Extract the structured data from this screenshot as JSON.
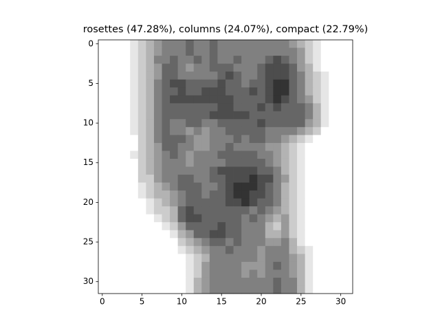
{
  "chart_data": {
    "type": "image",
    "title": "rosettes (47.28%), columns (24.07%), compact (22.79%)",
    "cmap": "gray_r",
    "clim": [
      0,
      10
    ],
    "xlim": [
      -0.5,
      31.5
    ],
    "ylim": [
      31.5,
      -0.5
    ],
    "xticks": [
      0,
      5,
      10,
      15,
      20,
      25,
      30
    ],
    "yticks": [
      0,
      5,
      10,
      15,
      20,
      25,
      30
    ],
    "values": [
      [
        0,
        0,
        0,
        0,
        1,
        2,
        3,
        4,
        5,
        5,
        5,
        6,
        5,
        5,
        6,
        5,
        5,
        5,
        5,
        5,
        5,
        5,
        5,
        5,
        4,
        3,
        2,
        1,
        0,
        0,
        0,
        0
      ],
      [
        0,
        0,
        0,
        0,
        1,
        2,
        3,
        4,
        5,
        5,
        5,
        6,
        5,
        5,
        6,
        5,
        5,
        5,
        5,
        5,
        5,
        5,
        5,
        5,
        5,
        4,
        2,
        1,
        0,
        0,
        0,
        0
      ],
      [
        0,
        0,
        0,
        0,
        1,
        2,
        3,
        5,
        5,
        6,
        5,
        5,
        6,
        5,
        6,
        5,
        5,
        6,
        5,
        5,
        5,
        6,
        7,
        6,
        5,
        4,
        2,
        1,
        0,
        0,
        0,
        0
      ],
      [
        0,
        0,
        0,
        0,
        1,
        2,
        3,
        4,
        6,
        6,
        5,
        4,
        5,
        5,
        6,
        6,
        6,
        5,
        5,
        5,
        6,
        7,
        7,
        7,
        6,
        4,
        3,
        1,
        0,
        0,
        0,
        0
      ],
      [
        0,
        0,
        0,
        0,
        1,
        2,
        3,
        4,
        6,
        6,
        5,
        5,
        5,
        5,
        5,
        6,
        7,
        6,
        5,
        5,
        6,
        7,
        7,
        7,
        6,
        5,
        3,
        2,
        1,
        0,
        0,
        0
      ],
      [
        0,
        0,
        0,
        0,
        1,
        2,
        3,
        5,
        6,
        7,
        7,
        6,
        6,
        6,
        6,
        7,
        6,
        6,
        5,
        6,
        6,
        7,
        8,
        8,
        6,
        5,
        3,
        2,
        1,
        0,
        0,
        0
      ],
      [
        0,
        0,
        0,
        0,
        1,
        2,
        3,
        5,
        6,
        6,
        7,
        6,
        6,
        7,
        7,
        7,
        6,
        6,
        6,
        7,
        6,
        7,
        8,
        8,
        6,
        5,
        3,
        2,
        1,
        0,
        0,
        0
      ],
      [
        0,
        0,
        0,
        0,
        1,
        2,
        3,
        5,
        6,
        7,
        7,
        7,
        7,
        7,
        7,
        7,
        7,
        6,
        6,
        6,
        6,
        7,
        8,
        7,
        6,
        5,
        4,
        2,
        1,
        0,
        0,
        0
      ],
      [
        0,
        0,
        0,
        0,
        1,
        2,
        3,
        5,
        6,
        6,
        6,
        6,
        6,
        6,
        6,
        7,
        7,
        6,
        6,
        6,
        7,
        6,
        7,
        6,
        6,
        6,
        5,
        3,
        1,
        0,
        0,
        0
      ],
      [
        0,
        0,
        0,
        0,
        1,
        2,
        3,
        5,
        6,
        6,
        6,
        6,
        6,
        6,
        7,
        7,
        7,
        7,
        7,
        6,
        6,
        6,
        6,
        6,
        6,
        6,
        5,
        3,
        1,
        0,
        0,
        0
      ],
      [
        0,
        0,
        0,
        0,
        1,
        2,
        3,
        5,
        6,
        5,
        5,
        6,
        6,
        5,
        5,
        6,
        6,
        6,
        6,
        6,
        7,
        6,
        6,
        6,
        6,
        6,
        4,
        3,
        1,
        0,
        0,
        0
      ],
      [
        0,
        0,
        0,
        0,
        1,
        2,
        3,
        5,
        6,
        5,
        5,
        4,
        5,
        4,
        5,
        5,
        6,
        6,
        6,
        6,
        6,
        5,
        5,
        5,
        5,
        4,
        3,
        2,
        0,
        0,
        0,
        0
      ],
      [
        0,
        0,
        0,
        0,
        0,
        2,
        3,
        5,
        6,
        6,
        6,
        5,
        4,
        4,
        5,
        5,
        5,
        6,
        5,
        6,
        6,
        5,
        5,
        4,
        3,
        2,
        1,
        0,
        0,
        0,
        0,
        0
      ],
      [
        0,
        0,
        0,
        0,
        0,
        2,
        3,
        4,
        6,
        6,
        5,
        5,
        4,
        4,
        5,
        5,
        6,
        5,
        5,
        5,
        5,
        4,
        4,
        3,
        2,
        1,
        0,
        0,
        0,
        0,
        0,
        0
      ],
      [
        0,
        0,
        0,
        0,
        1,
        2,
        3,
        4,
        5,
        6,
        5,
        4,
        5,
        5,
        5,
        6,
        6,
        6,
        6,
        6,
        5,
        5,
        4,
        3,
        2,
        1,
        0,
        0,
        0,
        0,
        0,
        0
      ],
      [
        0,
        0,
        0,
        0,
        0,
        2,
        3,
        4,
        5,
        5,
        5,
        4,
        5,
        5,
        5,
        5,
        6,
        6,
        6,
        6,
        6,
        5,
        4,
        3,
        2,
        1,
        0,
        0,
        0,
        0,
        0,
        0
      ],
      [
        0,
        0,
        0,
        0,
        0,
        2,
        3,
        4,
        5,
        5,
        5,
        5,
        5,
        5,
        6,
        7,
        7,
        7,
        7,
        7,
        6,
        6,
        5,
        3,
        2,
        1,
        0,
        0,
        0,
        0,
        0,
        0
      ],
      [
        0,
        0,
        0,
        0,
        0,
        2,
        2,
        4,
        5,
        5,
        6,
        6,
        5,
        5,
        6,
        6,
        7,
        7,
        7,
        8,
        7,
        7,
        5,
        4,
        2,
        1,
        0,
        0,
        0,
        0,
        0,
        0
      ],
      [
        0,
        0,
        0,
        0,
        0,
        1,
        2,
        3,
        4,
        5,
        6,
        6,
        6,
        5,
        5,
        6,
        7,
        8,
        8,
        8,
        7,
        6,
        5,
        3,
        2,
        1,
        0,
        0,
        0,
        0,
        0,
        0
      ],
      [
        0,
        0,
        0,
        0,
        0,
        1,
        2,
        3,
        3,
        4,
        5,
        6,
        6,
        5,
        6,
        6,
        7,
        8,
        8,
        7,
        7,
        6,
        5,
        3,
        2,
        1,
        0,
        0,
        0,
        0,
        0,
        0
      ],
      [
        0,
        0,
        0,
        0,
        0,
        0,
        1,
        2,
        3,
        4,
        5,
        6,
        6,
        6,
        6,
        6,
        7,
        7,
        8,
        7,
        6,
        6,
        5,
        3,
        2,
        1,
        0,
        0,
        0,
        0,
        0,
        0
      ],
      [
        0,
        0,
        0,
        0,
        0,
        0,
        1,
        2,
        2,
        3,
        6,
        7,
        6,
        6,
        6,
        6,
        6,
        6,
        6,
        5,
        6,
        5,
        4,
        3,
        2,
        1,
        0,
        0,
        0,
        0,
        0,
        0
      ],
      [
        0,
        0,
        0,
        0,
        0,
        0,
        0,
        1,
        2,
        3,
        6,
        7,
        7,
        6,
        6,
        6,
        6,
        6,
        5,
        6,
        5,
        4,
        3,
        4,
        2,
        1,
        0,
        0,
        0,
        0,
        0,
        0
      ],
      [
        0,
        0,
        0,
        0,
        0,
        0,
        0,
        0,
        1,
        2,
        4,
        6,
        6,
        6,
        6,
        7,
        6,
        6,
        5,
        5,
        5,
        3,
        2,
        4,
        2,
        1,
        0,
        0,
        0,
        0,
        0,
        0
      ],
      [
        0,
        0,
        0,
        0,
        0,
        0,
        0,
        0,
        0,
        1,
        3,
        4,
        6,
        6,
        7,
        7,
        6,
        6,
        5,
        5,
        5,
        3,
        3,
        4,
        2,
        1,
        0,
        0,
        0,
        0,
        0,
        0
      ],
      [
        0,
        0,
        0,
        0,
        0,
        0,
        0,
        0,
        0,
        0,
        2,
        3,
        4,
        5,
        6,
        6,
        5,
        6,
        5,
        5,
        5,
        4,
        4,
        5,
        3,
        1,
        0,
        0,
        0,
        0,
        0,
        0
      ],
      [
        0,
        0,
        0,
        0,
        0,
        0,
        0,
        0,
        0,
        0,
        1,
        2,
        3,
        4,
        5,
        5,
        6,
        5,
        5,
        5,
        4,
        5,
        5,
        5,
        3,
        2,
        1,
        0,
        0,
        0,
        0,
        0
      ],
      [
        0,
        0,
        0,
        0,
        0,
        0,
        0,
        0,
        0,
        0,
        0,
        1,
        2,
        3,
        5,
        5,
        5,
        5,
        5,
        5,
        4,
        5,
        5,
        5,
        4,
        3,
        1,
        0,
        0,
        0,
        0,
        0
      ],
      [
        0,
        0,
        0,
        0,
        0,
        0,
        0,
        0,
        0,
        0,
        0,
        1,
        2,
        4,
        5,
        5,
        5,
        5,
        4,
        4,
        4,
        5,
        6,
        5,
        4,
        3,
        1,
        0,
        0,
        0,
        0,
        0
      ],
      [
        0,
        0,
        0,
        0,
        0,
        0,
        0,
        0,
        0,
        0,
        0,
        1,
        2,
        4,
        5,
        5,
        5,
        5,
        4,
        5,
        4,
        5,
        5,
        5,
        4,
        3,
        1,
        0,
        0,
        0,
        0,
        0
      ],
      [
        0,
        0,
        0,
        0,
        0,
        0,
        0,
        0,
        0,
        0,
        0,
        1,
        3,
        4,
        5,
        5,
        5,
        5,
        5,
        5,
        5,
        5,
        6,
        5,
        5,
        3,
        1,
        0,
        0,
        0,
        0,
        0
      ],
      [
        0,
        0,
        0,
        0,
        0,
        0,
        0,
        0,
        0,
        0,
        0,
        1,
        3,
        4,
        5,
        5,
        5,
        5,
        5,
        5,
        5,
        5,
        6,
        5,
        5,
        3,
        1,
        0,
        0,
        0,
        0,
        0
      ]
    ]
  }
}
